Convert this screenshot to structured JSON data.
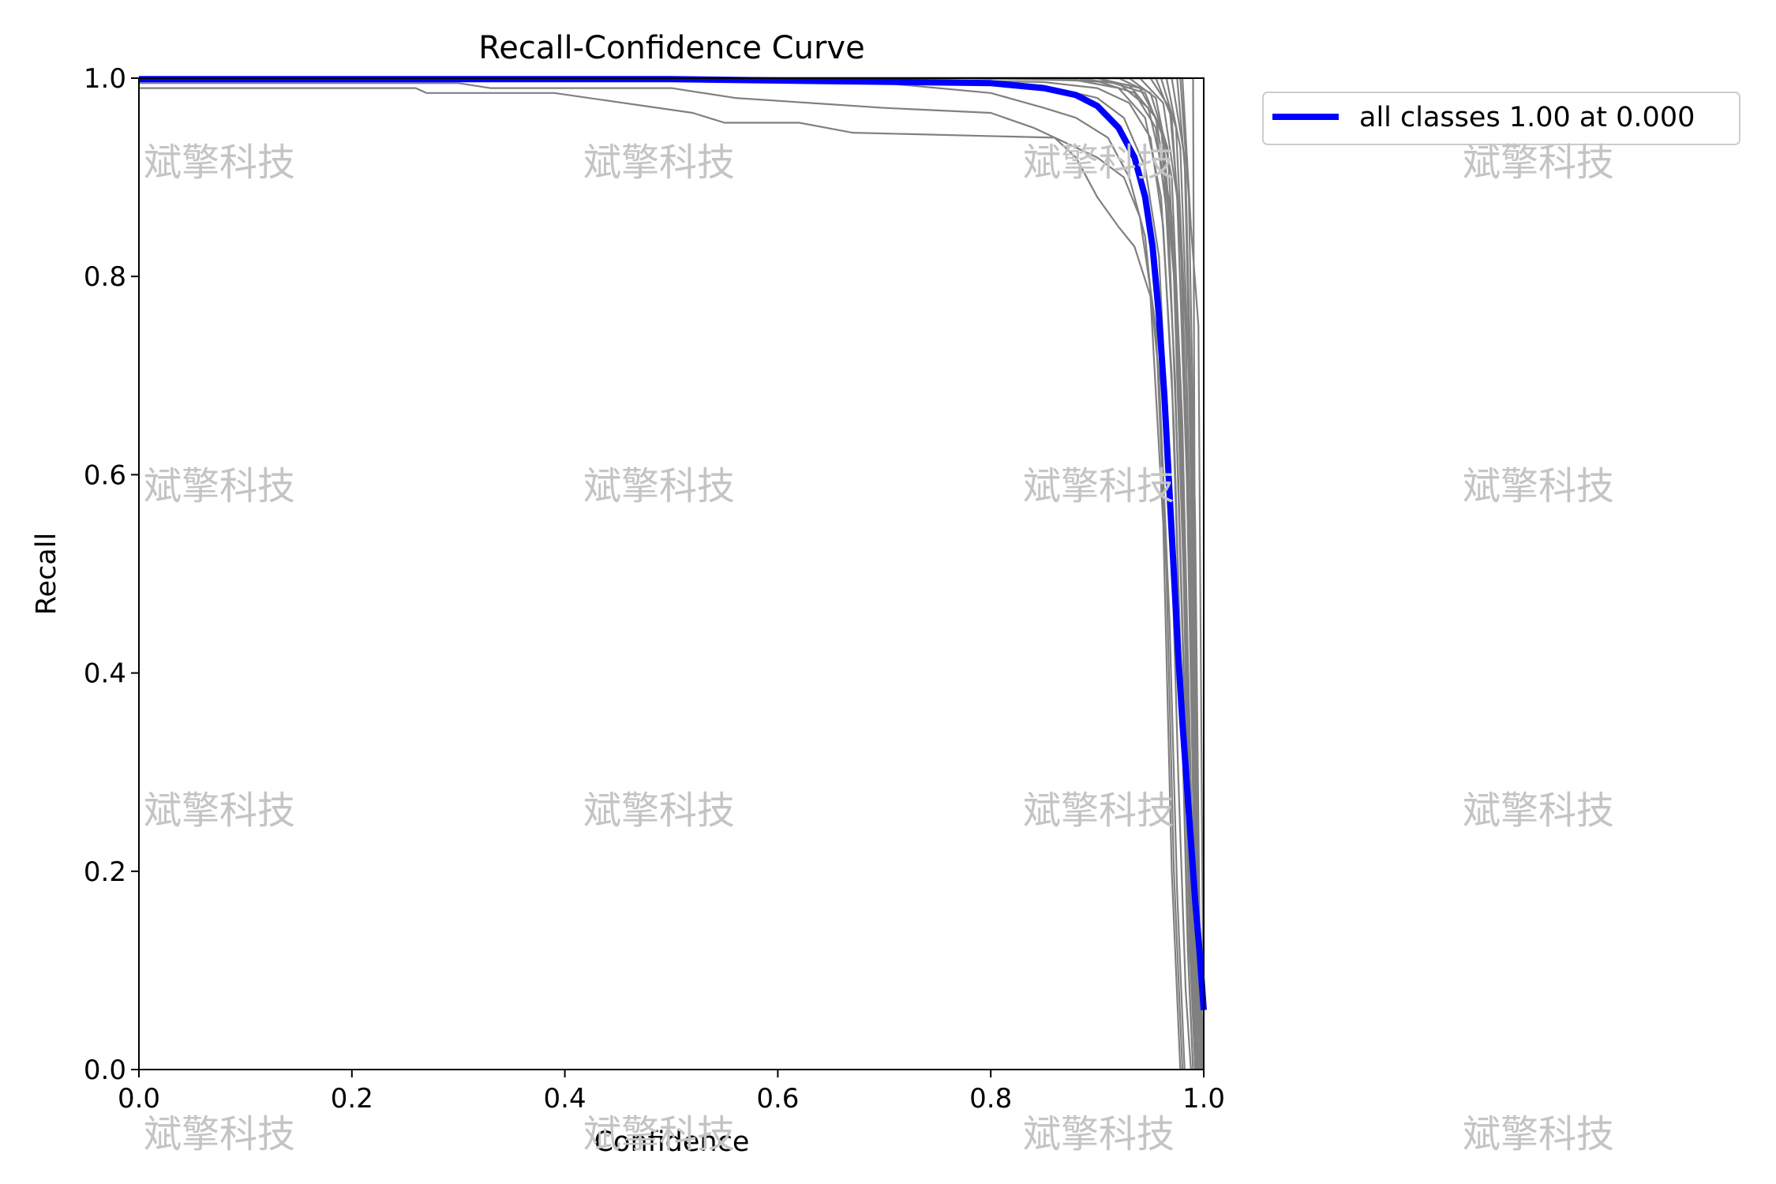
{
  "chart_data": {
    "type": "line",
    "title": "Recall-Confidence Curve",
    "xlabel": "Confidence",
    "ylabel": "Recall",
    "xlim": [
      0,
      1
    ],
    "ylim": [
      0,
      1
    ],
    "x_ticks": [
      "0.0",
      "0.2",
      "0.4",
      "0.6",
      "0.8",
      "1.0"
    ],
    "y_ticks": [
      "0.0",
      "0.2",
      "0.4",
      "0.6",
      "0.8",
      "1.0"
    ],
    "grid": false,
    "legend_position": "outside top-right",
    "watermark_text": "斌擎科技",
    "colors": {
      "class_curves": "#808080",
      "all_classes": "#0000ff"
    },
    "series": [
      {
        "name": "all classes 1.00 at 0.000",
        "color": "#0000ff",
        "x": [
          0.0,
          0.5,
          0.8,
          0.85,
          0.88,
          0.9,
          0.92,
          0.935,
          0.945,
          0.952,
          0.958,
          0.963,
          0.968,
          0.972,
          0.976,
          0.98,
          0.984,
          0.988,
          0.992,
          0.996,
          1.0
        ],
        "y": [
          0.999,
          0.999,
          0.995,
          0.99,
          0.983,
          0.972,
          0.95,
          0.92,
          0.88,
          0.83,
          0.76,
          0.68,
          0.58,
          0.5,
          0.42,
          0.35,
          0.29,
          0.23,
          0.17,
          0.12,
          0.06
        ]
      }
    ],
    "class_curves": [
      {
        "x": [
          0.0,
          0.26,
          0.27,
          0.39,
          0.52,
          0.55,
          0.62,
          0.67,
          0.86,
          0.88,
          0.9,
          0.92,
          0.935,
          0.95,
          0.962,
          0.97,
          0.978
        ],
        "y": [
          0.99,
          0.99,
          0.985,
          0.985,
          0.965,
          0.955,
          0.955,
          0.945,
          0.94,
          0.92,
          0.88,
          0.85,
          0.83,
          0.78,
          0.55,
          0.2,
          0.0
        ]
      },
      {
        "x": [
          0.0,
          0.3,
          0.33,
          0.5,
          0.56,
          0.7,
          0.8,
          0.84,
          0.87,
          0.9,
          0.925,
          0.94,
          0.955,
          0.965,
          0.972,
          0.98
        ],
        "y": [
          0.995,
          0.995,
          0.99,
          0.99,
          0.98,
          0.97,
          0.965,
          0.95,
          0.935,
          0.92,
          0.9,
          0.86,
          0.75,
          0.5,
          0.2,
          0.0
        ]
      },
      {
        "x": [
          0.0,
          0.5,
          0.7,
          0.8,
          0.85,
          0.88,
          0.91,
          0.93,
          0.945,
          0.958,
          0.968,
          0.975,
          0.982
        ],
        "y": [
          0.997,
          0.997,
          0.995,
          0.985,
          0.97,
          0.96,
          0.94,
          0.9,
          0.84,
          0.7,
          0.45,
          0.18,
          0.0
        ]
      },
      {
        "x": [
          0.0,
          0.6,
          0.8,
          0.86,
          0.9,
          0.925,
          0.945,
          0.958,
          0.968,
          0.976,
          0.983,
          0.988
        ],
        "y": [
          0.999,
          0.999,
          0.995,
          0.99,
          0.98,
          0.96,
          0.91,
          0.82,
          0.6,
          0.3,
          0.08,
          0.0
        ]
      },
      {
        "x": [
          0.0,
          0.7,
          0.85,
          0.9,
          0.93,
          0.95,
          0.962,
          0.972,
          0.98,
          0.986,
          0.99
        ],
        "y": [
          0.999,
          0.999,
          0.996,
          0.99,
          0.975,
          0.94,
          0.85,
          0.65,
          0.35,
          0.1,
          0.0
        ]
      },
      {
        "x": [
          0.0,
          0.75,
          0.88,
          0.92,
          0.945,
          0.96,
          0.97,
          0.978,
          0.985,
          0.99
        ],
        "y": [
          1.0,
          1.0,
          0.998,
          0.99,
          0.96,
          0.88,
          0.7,
          0.42,
          0.12,
          0.0
        ]
      },
      {
        "x": [
          0.0,
          0.8,
          0.9,
          0.935,
          0.955,
          0.967,
          0.976,
          0.984,
          0.99,
          0.994
        ],
        "y": [
          1.0,
          1.0,
          0.997,
          0.985,
          0.95,
          0.85,
          0.6,
          0.3,
          0.05,
          0.0
        ]
      },
      {
        "x": [
          0.0,
          0.85,
          0.92,
          0.948,
          0.963,
          0.973,
          0.981,
          0.987,
          0.992
        ],
        "y": [
          1.0,
          1.0,
          0.995,
          0.97,
          0.9,
          0.7,
          0.4,
          0.12,
          0.0
        ]
      },
      {
        "x": [
          0.0,
          0.88,
          0.93,
          0.955,
          0.97,
          0.979,
          0.986,
          0.991,
          0.995
        ],
        "y": [
          1.0,
          1.0,
          0.993,
          0.96,
          0.86,
          0.6,
          0.3,
          0.06,
          0.0
        ]
      },
      {
        "x": [
          0.0,
          0.9,
          0.94,
          0.96,
          0.972,
          0.981,
          0.987,
          0.992
        ],
        "y": [
          1.0,
          1.0,
          0.99,
          0.95,
          0.8,
          0.5,
          0.2,
          0.0
        ]
      },
      {
        "x": [
          0.0,
          0.9,
          0.945,
          0.962,
          0.974,
          0.982,
          0.988,
          0.993
        ],
        "y": [
          1.0,
          1.0,
          0.985,
          0.94,
          0.78,
          0.48,
          0.18,
          0.0
        ]
      },
      {
        "x": [
          0.0,
          0.92,
          0.95,
          0.966,
          0.977,
          0.985,
          0.991,
          0.995
        ],
        "y": [
          1.0,
          1.0,
          0.985,
          0.93,
          0.72,
          0.4,
          0.12,
          0.0
        ]
      },
      {
        "x": [
          0.0,
          0.93,
          0.955,
          0.97,
          0.98,
          0.987,
          0.992,
          0.996
        ],
        "y": [
          1.0,
          1.0,
          0.98,
          0.9,
          0.65,
          0.33,
          0.08,
          0.0
        ]
      },
      {
        "x": [
          0.0,
          0.94,
          0.962,
          0.975,
          0.984,
          0.99,
          0.995,
          0.998
        ],
        "y": [
          1.0,
          1.0,
          0.975,
          0.88,
          0.6,
          0.28,
          0.05,
          0.0
        ]
      },
      {
        "x": [
          0.0,
          0.95,
          0.968,
          0.978,
          0.986,
          0.991,
          0.995
        ],
        "y": [
          1.0,
          1.0,
          0.97,
          0.85,
          0.55,
          0.2,
          0.0
        ]
      },
      {
        "x": [
          0.0,
          0.955,
          0.97,
          0.98,
          0.988,
          0.993,
          0.997
        ],
        "y": [
          1.0,
          1.0,
          0.96,
          0.8,
          0.45,
          0.15,
          0.0
        ]
      },
      {
        "x": [
          0.0,
          0.96,
          0.974,
          0.983,
          0.99,
          0.995,
          0.998
        ],
        "y": [
          1.0,
          1.0,
          0.95,
          0.75,
          0.4,
          0.12,
          0.0
        ]
      },
      {
        "x": [
          0.0,
          0.965,
          0.978,
          0.986,
          0.992,
          0.996,
          0.999
        ],
        "y": [
          1.0,
          1.0,
          0.93,
          0.7,
          0.35,
          0.1,
          0.0
        ]
      },
      {
        "x": [
          0.0,
          0.97,
          0.982,
          0.988,
          0.993,
          0.997,
          0.999
        ],
        "y": [
          1.0,
          1.0,
          0.92,
          0.65,
          0.3,
          0.08,
          0.0
        ]
      },
      {
        "x": [
          0.0,
          0.975,
          0.983,
          0.99,
          0.995,
          0.998
        ],
        "y": [
          1.0,
          1.0,
          0.9,
          0.6,
          0.2,
          0.0
        ]
      },
      {
        "x": [
          0.0,
          0.978,
          0.986,
          0.992,
          0.996,
          0.999
        ],
        "y": [
          1.0,
          1.0,
          0.88,
          0.55,
          0.15,
          0.0
        ]
      },
      {
        "x": [
          0.0,
          0.98,
          0.988,
          0.995,
          1.0
        ],
        "y": [
          1.0,
          1.0,
          0.85,
          0.75,
          0.0
        ]
      },
      {
        "x": [
          0.0,
          0.99,
          0.992,
          0.993
        ],
        "y": [
          1.0,
          1.0,
          0.4,
          0.0
        ]
      }
    ]
  }
}
